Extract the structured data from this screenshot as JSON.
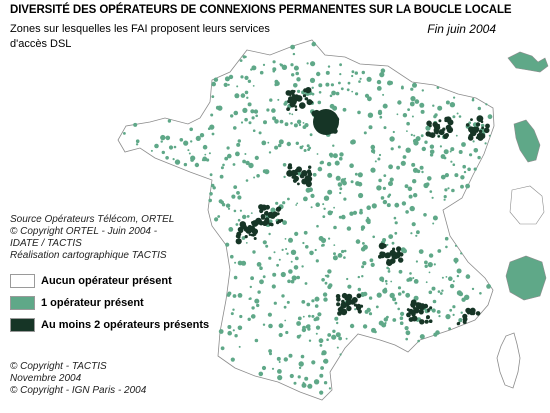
{
  "map": {
    "title": "DIVERSITÉ DES OPÉRATEURS DE CONNEXIONS PERMANENTES SUR LA BOUCLE LOCALE",
    "subtitle": "Zones sur lesquelles les FAI proposent leurs services d'accès DSL",
    "date": "Fin juin 2004"
  },
  "source": {
    "line1": "Source Opérateurs Télécom, ORTEL",
    "line2": "© Copyright ORTEL - Juin 2004 -",
    "line3": "IDATE / TACTIS",
    "line4": "Réalisation cartographique TACTIS"
  },
  "legend": {
    "items": [
      {
        "label": "Aucun opérateur présent",
        "color": "#ffffff"
      },
      {
        "label": "1 opérateur présent",
        "color": "#5fa888"
      },
      {
        "label": "Au moins 2 opérateurs présents",
        "color": "#163526"
      }
    ]
  },
  "copyright": {
    "line1": "© Copyright - TACTIS",
    "line2": "Novembre 2004",
    "line3": "© Copyright - IGN Paris - 2004"
  },
  "colors": {
    "one_operator": "#5fa888",
    "two_operators": "#163526",
    "border": "#8c8c8c"
  }
}
